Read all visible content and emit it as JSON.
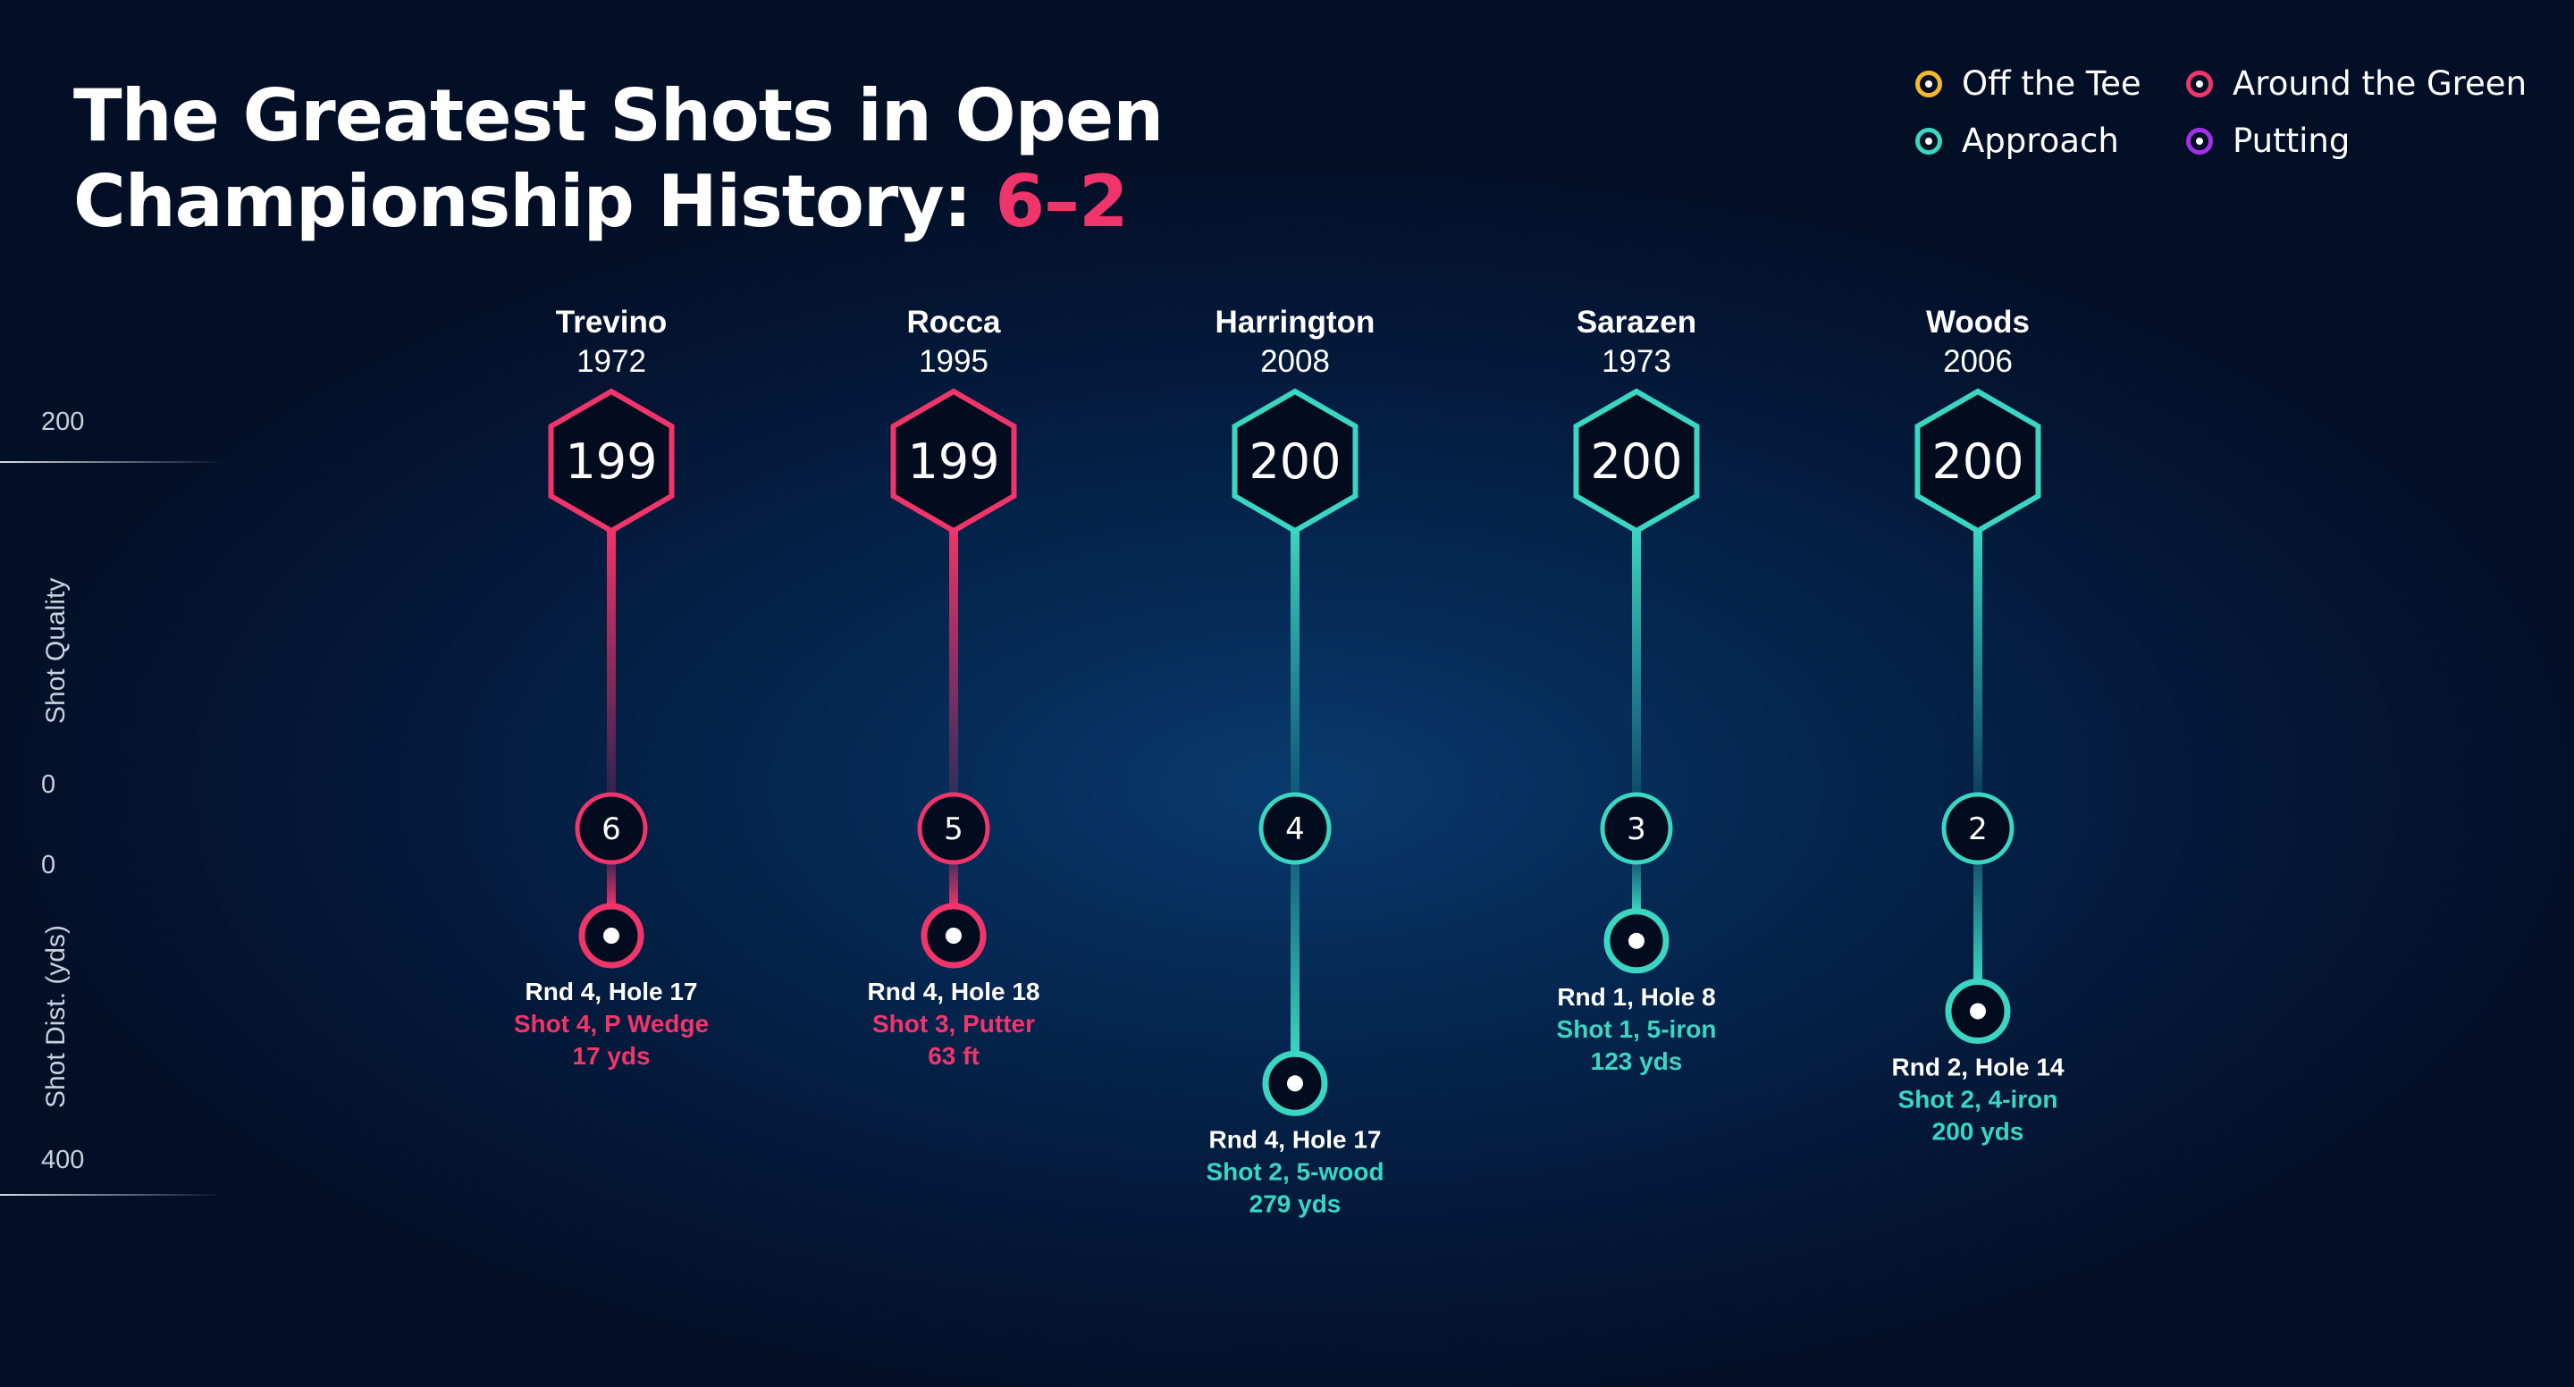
{
  "title": {
    "main": "The Greatest Shots in Open Championship History: ",
    "accent": "6–2"
  },
  "legend": [
    {
      "label": "Off the Tee",
      "color": "#f5b82e"
    },
    {
      "label": "Around the Green",
      "color": "#f0356a"
    },
    {
      "label": "Approach",
      "color": "#3ad6c2"
    },
    {
      "label": "Putting",
      "color": "#a230e8"
    }
  ],
  "axes": {
    "upper": {
      "title": "Shot Quality",
      "max_label": "200",
      "min_label": "0"
    },
    "lower": {
      "title": "Shot Dist. (yds)",
      "min_label": "0",
      "max_label": "400"
    }
  },
  "chart_data": {
    "type": "lollipop",
    "upper_axis": {
      "label": "Shot Quality",
      "range": [
        0,
        200
      ]
    },
    "lower_axis": {
      "label": "Shot Dist. (yds)",
      "range": [
        0,
        400
      ]
    },
    "shots": [
      {
        "rank": "6",
        "player": "Trevino",
        "year": "1972",
        "score": "199",
        "category": "Around the Green",
        "hole": "Rnd 4, Hole 17",
        "shot": "Shot 4, P Wedge",
        "distance_label": "17 yds",
        "distance_yds": 17
      },
      {
        "rank": "5",
        "player": "Rocca",
        "year": "1995",
        "score": "199",
        "category": "Around the Green",
        "hole": "Rnd 4, Hole 18",
        "shot": "Shot 3, Putter",
        "distance_label": "63 ft",
        "distance_yds": 21
      },
      {
        "rank": "4",
        "player": "Harrington",
        "year": "2008",
        "score": "200",
        "category": "Approach",
        "hole": "Rnd 4, Hole 17",
        "shot": "Shot 2, 5-wood",
        "distance_label": "279 yds",
        "distance_yds": 279
      },
      {
        "rank": "3",
        "player": "Sarazen",
        "year": "1973",
        "score": "200",
        "category": "Approach",
        "hole": "Rnd 1, Hole 8",
        "shot": "Shot 1, 5-iron",
        "distance_label": "123 yds",
        "distance_yds": 123
      },
      {
        "rank": "2",
        "player": "Woods",
        "year": "2006",
        "score": "200",
        "category": "Approach",
        "hole": "Rnd 2, Hole 14",
        "shot": "Shot 2, 4-iron",
        "distance_label": "200 yds",
        "distance_yds": 200
      }
    ]
  }
}
